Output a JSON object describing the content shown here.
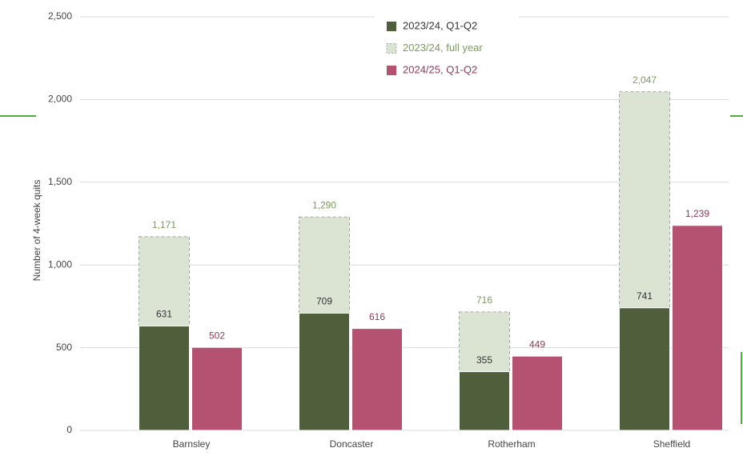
{
  "chart_data": {
    "type": "bar",
    "y_label": "Number of 4-week quits",
    "categories": [
      "Barnsley",
      "Doncaster",
      "Rotherham",
      "Sheffield"
    ],
    "series": [
      {
        "name": "2023/24, Q1-Q2",
        "color": "#4f5f3c",
        "label_color": "#333333",
        "values": [
          631,
          709,
          355,
          741
        ],
        "value_labels": [
          "631",
          "709",
          "355",
          "741"
        ]
      },
      {
        "name": "2023/24, full year",
        "color": "#dbe3d3",
        "label_color": "#7d9a5c",
        "values": [
          1171,
          1290,
          716,
          2047
        ],
        "value_labels": [
          "1,171",
          "1,290",
          "716",
          "2,047"
        ]
      },
      {
        "name": "2024/25, Q1-Q2",
        "color": "#b55272",
        "label_color": "#8a3b5a",
        "values": [
          502,
          616,
          449,
          1239
        ],
        "value_labels": [
          "502",
          "616",
          "449",
          "1,239"
        ]
      }
    ],
    "ylim": [
      0,
      2500
    ],
    "yticks": [
      0,
      500,
      {
        "value": 1000,
        "label": "1,000"
      },
      {
        "value": 1500,
        "label": "1,500"
      },
      {
        "value": 2000,
        "label": "2,000"
      },
      {
        "value": 2500,
        "label": "2,500"
      }
    ],
    "grid": true
  }
}
